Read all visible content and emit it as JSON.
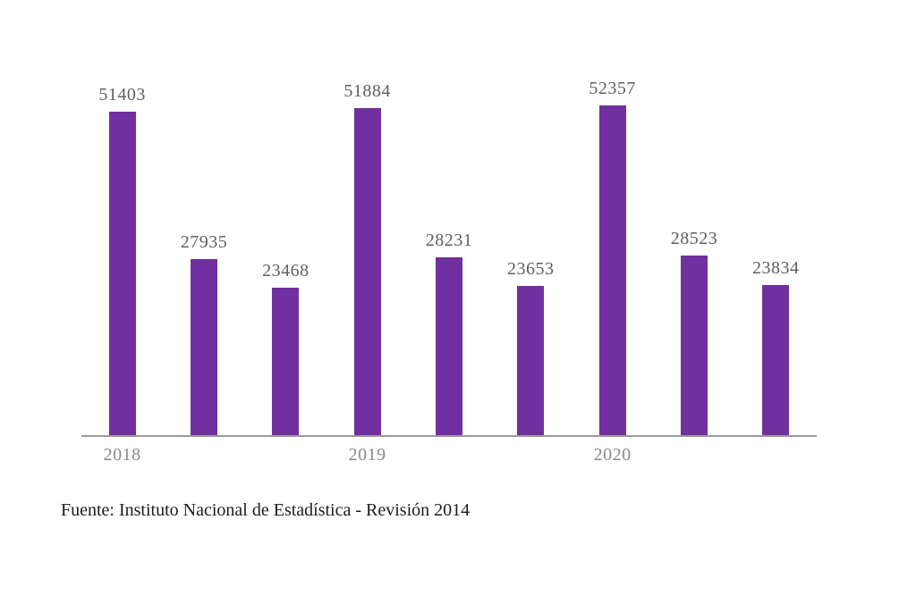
{
  "chart_data": {
    "type": "bar",
    "title": "",
    "xlabel": "",
    "ylabel": "",
    "categories": [
      "2018",
      "",
      "",
      "2019",
      "",
      "",
      "2020",
      "",
      ""
    ],
    "values": [
      51403,
      27935,
      23468,
      51884,
      28231,
      23653,
      52357,
      28523,
      23834
    ],
    "visible_x_tick_labels": [
      "2018",
      "2019",
      "2020"
    ],
    "data_labels_shown": true,
    "ylim": [
      0,
      55000
    ],
    "y_axis_shown": false,
    "grid": false,
    "legend": "none",
    "bar_color": "#7030A0",
    "value_label_color": "#5f5f5f",
    "tick_label_color": "#8a8a8a",
    "axis_line_color": "#9a9a9a"
  },
  "footer": {
    "source_text": "Fuente: Instituto Nacional de Estadística - Revisión 2014"
  }
}
